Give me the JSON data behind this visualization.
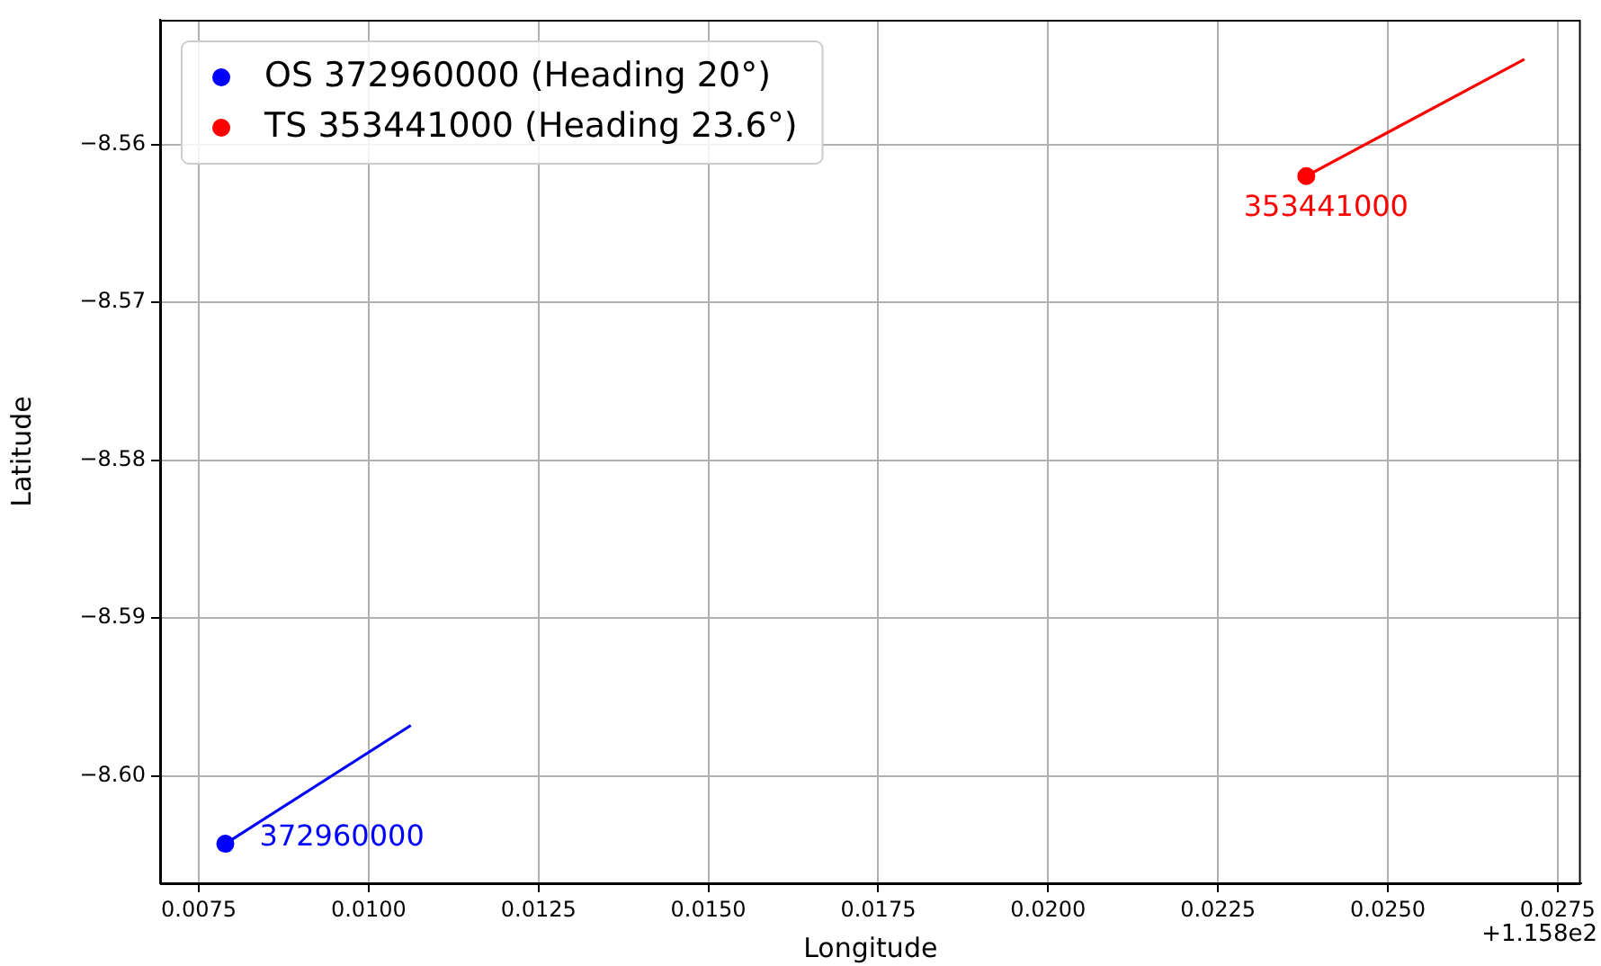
{
  "chart_data": {
    "type": "scatter",
    "xlabel": "Longitude",
    "ylabel": "Latitude",
    "series": [
      {
        "name": "OS 372960000 (Heading 20°)",
        "color": "#0000ff",
        "marker": "circle",
        "x": [
          0.00789
        ],
        "values": [
          -8.6043
        ]
      },
      {
        "name": "TS 353441000 (Heading 23.6°)",
        "color": "#ff0000",
        "marker": "circle",
        "x": [
          0.0238
        ],
        "values": [
          -8.562
        ]
      },
      {
        "type": "line",
        "color": "#0000ff",
        "x": [
          0.00789,
          0.01062
        ],
        "values": [
          -8.6043,
          -8.5968
        ]
      },
      {
        "type": "line",
        "color": "#ff0000",
        "x": [
          0.0238,
          0.02701
        ],
        "values": [
          -8.562,
          -8.5546
        ]
      }
    ],
    "annotations": [
      {
        "text": "372960000",
        "x": 0.00789,
        "y": -8.6043
      },
      {
        "text": "353441000",
        "x": 0.0238,
        "y": -8.562
      },
      "+1.158e2"
    ],
    "xlim": [
      0.00693,
      0.02784
    ],
    "ylim": [
      -8.6068,
      -8.5521
    ],
    "xticks": [
      {
        "value": 0.0075,
        "label": "0.0075"
      },
      {
        "value": 0.01,
        "label": "0.0100"
      },
      {
        "value": 0.0125,
        "label": "0.0125"
      },
      {
        "value": 0.015,
        "label": "0.0150"
      },
      {
        "value": 0.0175,
        "label": "0.0175"
      },
      {
        "value": 0.02,
        "label": "0.0200"
      },
      {
        "value": 0.0225,
        "label": "0.0225"
      },
      {
        "value": 0.025,
        "label": "0.0250"
      },
      {
        "value": 0.0275,
        "label": "0.0275"
      }
    ],
    "yticks": [
      {
        "value": -8.6,
        "label": "−8.60"
      },
      {
        "value": -8.59,
        "label": "−8.59"
      },
      {
        "value": -8.58,
        "label": "−8.58"
      },
      {
        "value": -8.57,
        "label": "−8.57"
      },
      {
        "value": -8.56,
        "label": "−8.56"
      }
    ],
    "grid": true,
    "legend": "top left",
    "line_style": "solid"
  }
}
